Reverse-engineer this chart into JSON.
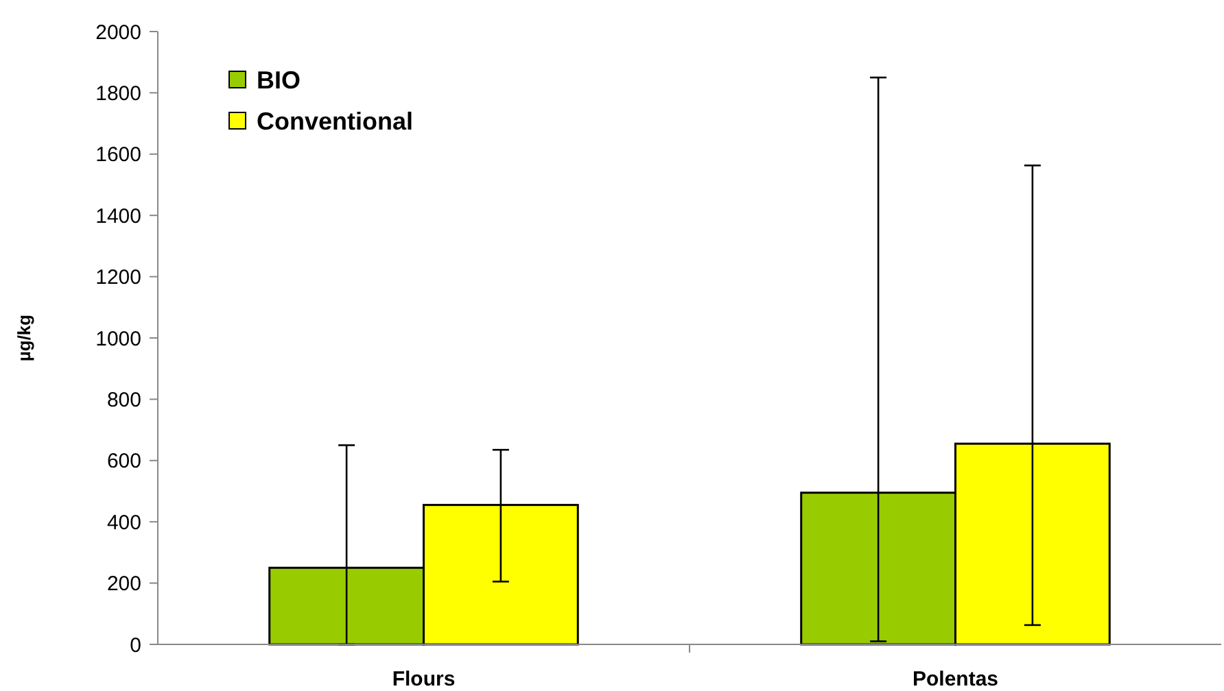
{
  "chart_data": {
    "type": "bar",
    "ylabel": "µg/kg",
    "categories": [
      "Flours",
      "Polentas"
    ],
    "series": [
      {
        "name": "BIO",
        "color": "#99cc00",
        "values": [
          250,
          495
        ],
        "errors": [
          [
            0,
            650
          ],
          [
            10,
            1850
          ]
        ]
      },
      {
        "name": "Conventional",
        "color": "#ffff00",
        "values": [
          455,
          655
        ],
        "errors": [
          [
            205,
            635
          ],
          [
            63,
            1563
          ]
        ]
      }
    ],
    "ylim": [
      0,
      2000
    ],
    "yticks": [
      0,
      200,
      400,
      600,
      800,
      1000,
      1200,
      1400,
      1600,
      1800,
      2000
    ],
    "grid": false,
    "legend": "top left"
  }
}
